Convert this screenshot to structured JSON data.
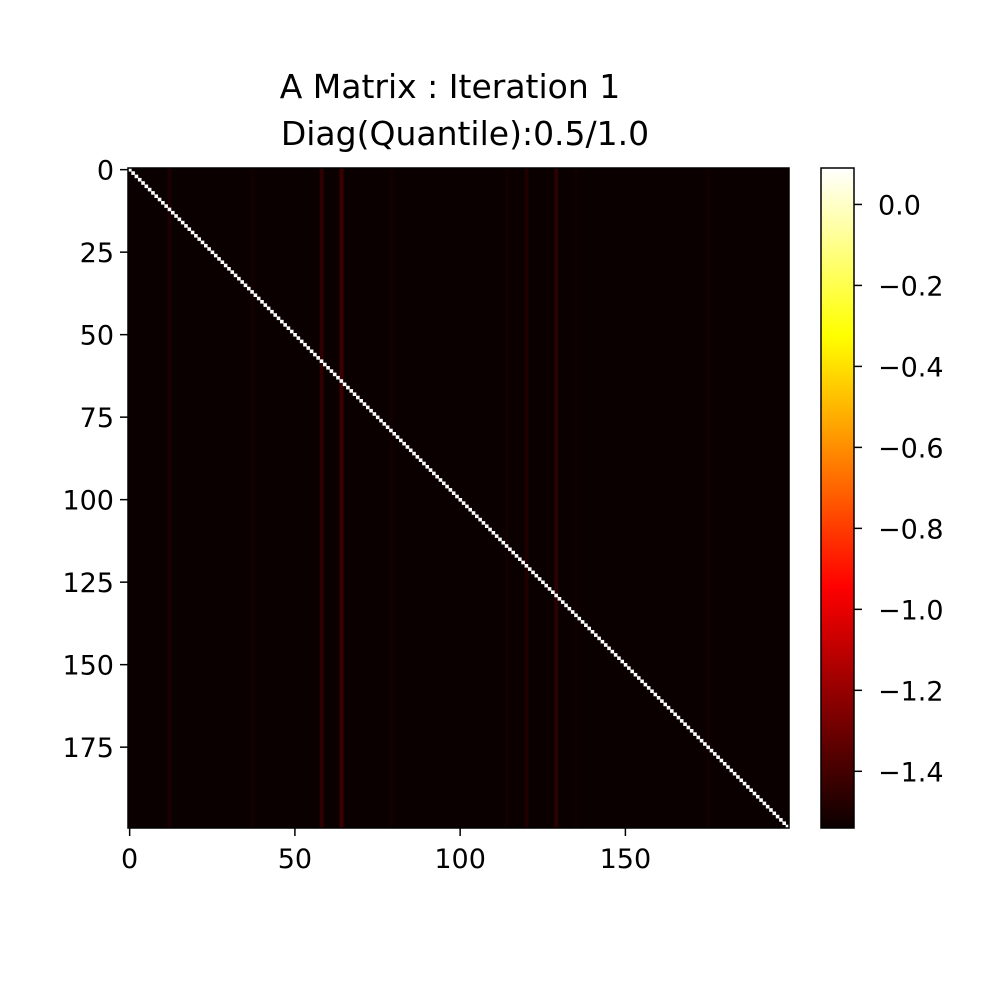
{
  "chart_data": {
    "type": "heatmap",
    "title": "A Matrix : Iteration 1",
    "subtitle": "Diag(Quantile):0.5/1.0",
    "xlabel": "",
    "ylabel": "",
    "colormap": "hot",
    "matrix_size": 200,
    "xlim": [
      -0.5,
      199.5
    ],
    "ylim": [
      199.5,
      -0.5
    ],
    "x_ticks": [
      0,
      50,
      100,
      150
    ],
    "x_tick_labels": [
      "0",
      "50",
      "100",
      "150"
    ],
    "y_ticks": [
      0,
      25,
      50,
      75,
      100,
      125,
      150,
      175
    ],
    "y_tick_labels": [
      "0",
      "25",
      "50",
      "75",
      "100",
      "125",
      "150",
      "175"
    ],
    "background_value": -1.53,
    "diagonal_value": 0.09,
    "highlighted_columns": [
      {
        "col": 12,
        "value": -1.48
      },
      {
        "col": 37,
        "value": -1.5
      },
      {
        "col": 58,
        "value": -1.43
      },
      {
        "col": 64,
        "value": -1.4
      },
      {
        "col": 79,
        "value": -1.5
      },
      {
        "col": 114,
        "value": -1.5
      },
      {
        "col": 120,
        "value": -1.47
      },
      {
        "col": 129,
        "value": -1.44
      },
      {
        "col": 135,
        "value": -1.5
      },
      {
        "col": 175,
        "value": -1.5
      }
    ],
    "colorbar": {
      "min": -1.54,
      "max": 0.09,
      "ticks": [
        0.0,
        -0.2,
        -0.4,
        -0.6,
        -0.8,
        -1.0,
        -1.2,
        -1.4
      ],
      "tick_labels": [
        "0.0",
        "−0.2",
        "−0.4",
        "−0.6",
        "−0.8",
        "−1.0",
        "−1.2",
        "−1.4"
      ]
    }
  }
}
